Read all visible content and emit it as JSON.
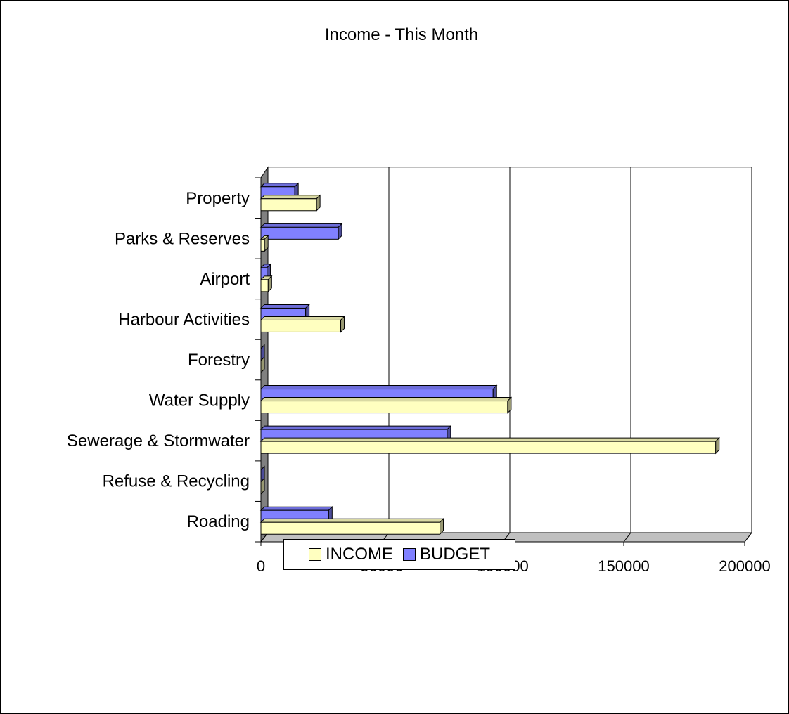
{
  "chart_data": {
    "type": "bar",
    "orientation": "horizontal",
    "title": "Income - This Month",
    "categories": [
      "Property",
      "Parks & Reserves",
      "Airport",
      "Harbour Activities",
      "Forestry",
      "Water Supply",
      "Sewerage & Stormwater",
      "Refuse & Recycling",
      "Roading"
    ],
    "series": [
      {
        "name": "INCOME",
        "color": "#FFFFC0",
        "values": [
          23000,
          1500,
          3000,
          33000,
          0,
          102000,
          188000,
          0,
          74000
        ]
      },
      {
        "name": "BUDGET",
        "color": "#8080FF",
        "values": [
          14000,
          32000,
          2500,
          18500,
          0,
          96000,
          77000,
          0,
          28000
        ]
      }
    ],
    "x_ticks": [
      "0",
      "50000",
      "100000",
      "150000",
      "200000"
    ],
    "xlim": [
      0,
      200000
    ],
    "grid": true,
    "legend_position": "bottom"
  }
}
